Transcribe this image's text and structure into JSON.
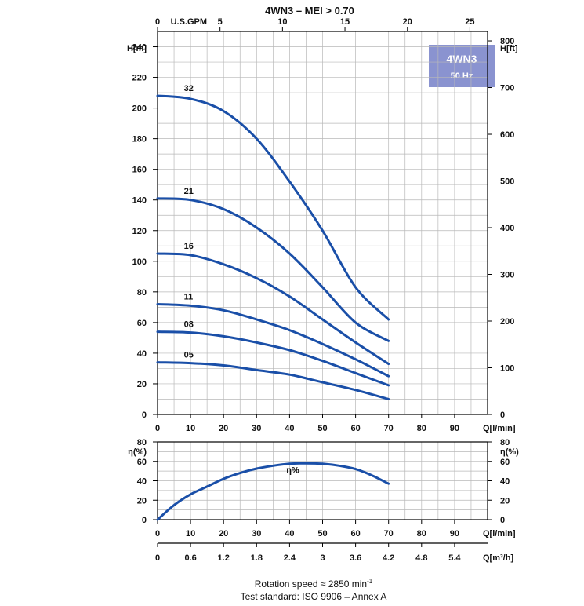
{
  "title": "4WN3 – MEI > 0.70",
  "badge": {
    "model": "4WN3",
    "freq": "50 Hz",
    "color": "#8a93d0"
  },
  "colors": {
    "curve": "#1a4fa8",
    "grid": "#b8b8b8",
    "axis": "#000000"
  },
  "footer": {
    "line1": "Rotation speed ≈ 2850 min",
    "line1_sup": "-1",
    "line2": "Test standard: ISO 9906 – Annex A"
  },
  "chart_data": [
    {
      "type": "line",
      "name": "head",
      "xlabel": "Q[l/min]",
      "ylabel_left": "H[m]",
      "ylabel_right": "H[ft]",
      "top_axis_label": "U.S.GPM",
      "xlim": [
        0,
        100
      ],
      "ylim": [
        0,
        250
      ],
      "x_ticks": [
        0,
        10,
        20,
        30,
        40,
        50,
        60,
        70,
        80,
        90
      ],
      "y_ticks": [
        0,
        20,
        40,
        60,
        80,
        100,
        120,
        140,
        160,
        180,
        200,
        220,
        240
      ],
      "ft_ticks": [
        0,
        100,
        200,
        300,
        400,
        500,
        600,
        700,
        800
      ],
      "gpm_ticks": [
        0,
        5,
        10,
        15,
        20,
        25
      ],
      "grid": true,
      "series": [
        {
          "name": "32",
          "x": [
            0,
            10,
            20,
            30,
            40,
            50,
            60,
            70
          ],
          "y": [
            208,
            206,
            198,
            180,
            152,
            120,
            83,
            62
          ]
        },
        {
          "name": "21",
          "x": [
            0,
            10,
            20,
            30,
            40,
            50,
            60,
            70
          ],
          "y": [
            141,
            140,
            134,
            122,
            105,
            83,
            60,
            48
          ]
        },
        {
          "name": "16",
          "x": [
            0,
            10,
            20,
            30,
            40,
            50,
            60,
            70
          ],
          "y": [
            105,
            104,
            98,
            89,
            77,
            62,
            47,
            33
          ]
        },
        {
          "name": "11",
          "x": [
            0,
            10,
            20,
            30,
            40,
            50,
            60,
            70
          ],
          "y": [
            72,
            71,
            68,
            62,
            55,
            46,
            36,
            25
          ]
        },
        {
          "name": "08",
          "x": [
            0,
            10,
            20,
            30,
            40,
            50,
            60,
            70
          ],
          "y": [
            54,
            53.5,
            51,
            47,
            42,
            35,
            27,
            19
          ]
        },
        {
          "name": "05",
          "x": [
            0,
            10,
            20,
            30,
            40,
            50,
            60,
            70
          ],
          "y": [
            34,
            33.5,
            32,
            29,
            26,
            21,
            16,
            10
          ]
        }
      ]
    },
    {
      "type": "line",
      "name": "efficiency",
      "xlabel": "Q[l/min]",
      "xlabel2": "Q[m³/h]",
      "ylabel_left": "η(%)",
      "ylabel_right": "η(%)",
      "xlim": [
        0,
        100
      ],
      "ylim": [
        0,
        80
      ],
      "x_ticks": [
        0,
        10,
        20,
        30,
        40,
        50,
        60,
        70,
        80,
        90
      ],
      "y_ticks": [
        0,
        20,
        40,
        60,
        80
      ],
      "m3h_ticks": [
        "0",
        "0.6",
        "1.2",
        "1.8",
        "2.4",
        "3",
        "3.6",
        "4.2",
        "4.8",
        "5.4"
      ],
      "grid": true,
      "series": [
        {
          "name": "η%",
          "x": [
            0,
            5,
            10,
            15,
            20,
            25,
            30,
            35,
            40,
            45,
            50,
            55,
            60,
            65,
            70
          ],
          "y": [
            0,
            15,
            26,
            34,
            42,
            48,
            52.5,
            55.5,
            57.5,
            58,
            57.5,
            55.5,
            52,
            45.5,
            37
          ]
        }
      ]
    }
  ]
}
